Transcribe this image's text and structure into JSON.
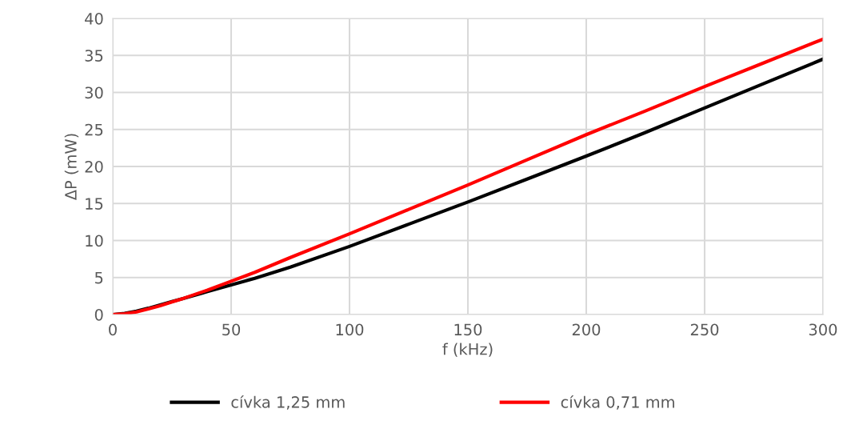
{
  "chart_data": {
    "type": "line",
    "xlabel": "f (kHz)",
    "ylabel": "ΔP (mW)",
    "x": [
      0,
      5,
      10,
      15,
      20,
      25,
      30,
      40,
      50,
      60,
      75,
      100,
      125,
      150,
      175,
      200,
      225,
      250,
      275,
      300
    ],
    "series": [
      {
        "name": "cívka 1,25 mm",
        "color": "#000000",
        "values": [
          0,
          0.15,
          0.45,
          0.85,
          1.3,
          1.75,
          2.2,
          3.1,
          4.0,
          4.9,
          6.4,
          9.2,
          12.2,
          15.2,
          18.3,
          21.4,
          24.6,
          27.9,
          31.2,
          34.5
        ]
      },
      {
        "name": "cívka 0,71 mm",
        "color": "#ff0000",
        "values": [
          0,
          0.1,
          0.35,
          0.75,
          1.2,
          1.7,
          2.2,
          3.3,
          4.5,
          5.7,
          7.7,
          10.9,
          14.2,
          17.5,
          20.9,
          24.3,
          27.5,
          30.8,
          34.0,
          37.2
        ]
      }
    ],
    "xlim": [
      0,
      300
    ],
    "xticks": [
      0,
      50,
      100,
      150,
      200,
      250,
      300
    ],
    "ylim": [
      0,
      40
    ],
    "yticks": [
      0,
      5,
      10,
      15,
      20,
      25,
      30,
      35,
      40
    ],
    "grid": true,
    "legend": "bottom",
    "marker": "none",
    "line_style": "solid"
  }
}
